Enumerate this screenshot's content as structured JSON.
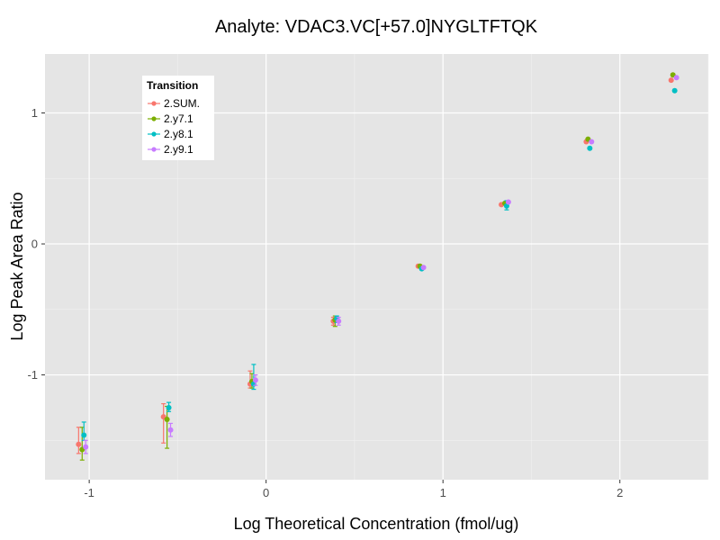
{
  "chart_data": {
    "type": "scatter",
    "title": "Analyte: VDAC3.VC[+57.0]NYGLTFTQK",
    "xlabel": "Log Theoretical Concentration (fmol/ug)",
    "ylabel": "Log Peak Area Ratio",
    "xlim": [
      -1.25,
      2.5
    ],
    "ylim": [
      -1.8,
      1.45
    ],
    "x_ticks": [
      -1,
      0,
      1,
      2
    ],
    "y_ticks": [
      -1,
      0,
      1
    ],
    "x_tick_labels": [
      "-1",
      "0",
      "1",
      "2"
    ],
    "y_tick_labels": [
      "-1",
      "0",
      "1"
    ],
    "grid": true,
    "legend": {
      "title": "Transition",
      "placement": "top-left"
    },
    "series": [
      {
        "name": "2.SUM.",
        "color": "#F8766D",
        "points": [
          {
            "x": -1.06,
            "y": -1.53,
            "ymin": -1.6,
            "ymax": -1.4
          },
          {
            "x": -0.58,
            "y": -1.32,
            "ymin": -1.52,
            "ymax": -1.22
          },
          {
            "x": -0.09,
            "y": -1.07,
            "ymin": -1.1,
            "ymax": -0.97
          },
          {
            "x": 0.38,
            "y": -0.59,
            "ymin": -0.62,
            "ymax": -0.56
          },
          {
            "x": 0.86,
            "y": -0.17
          },
          {
            "x": 1.33,
            "y": 0.3
          },
          {
            "x": 1.81,
            "y": 0.78
          },
          {
            "x": 2.29,
            "y": 1.25
          }
        ]
      },
      {
        "name": "2.y7.1",
        "color": "#7CAE00",
        "points": [
          {
            "x": -1.04,
            "y": -1.57,
            "ymin": -1.65,
            "ymax": -1.4
          },
          {
            "x": -0.56,
            "y": -1.34,
            "ymin": -1.56,
            "ymax": -1.24
          },
          {
            "x": -0.08,
            "y": -1.05,
            "ymin": -1.1,
            "ymax": -0.99
          },
          {
            "x": 0.39,
            "y": -0.58,
            "ymin": -0.63,
            "ymax": -0.55
          },
          {
            "x": 0.87,
            "y": -0.17
          },
          {
            "x": 1.35,
            "y": 0.31
          },
          {
            "x": 1.82,
            "y": 0.8
          },
          {
            "x": 2.3,
            "y": 1.29
          }
        ]
      },
      {
        "name": "2.y8.1",
        "color": "#00BFC4",
        "points": [
          {
            "x": -1.03,
            "y": -1.46,
            "ymin": -1.5,
            "ymax": -1.36
          },
          {
            "x": -0.55,
            "y": -1.25,
            "ymin": -1.28,
            "ymax": -1.21
          },
          {
            "x": -0.07,
            "y": -1.07,
            "ymin": -1.11,
            "ymax": -0.92
          },
          {
            "x": 0.4,
            "y": -0.57,
            "ymin": -0.6,
            "ymax": -0.55
          },
          {
            "x": 0.88,
            "y": -0.19
          },
          {
            "x": 1.36,
            "y": 0.29,
            "ymin": 0.26,
            "ymax": 0.33
          },
          {
            "x": 1.83,
            "y": 0.73
          },
          {
            "x": 2.31,
            "y": 1.17
          }
        ]
      },
      {
        "name": "2.y9.1",
        "color": "#C77CFF",
        "points": [
          {
            "x": -1.02,
            "y": -1.55,
            "ymin": -1.6,
            "ymax": -1.5
          },
          {
            "x": -0.54,
            "y": -1.42,
            "ymin": -1.47,
            "ymax": -1.37
          },
          {
            "x": -0.06,
            "y": -1.04,
            "ymin": -1.08,
            "ymax": -1.0
          },
          {
            "x": 0.41,
            "y": -0.59,
            "ymin": -0.62,
            "ymax": -0.56
          },
          {
            "x": 0.89,
            "y": -0.18
          },
          {
            "x": 1.37,
            "y": 0.32
          },
          {
            "x": 1.84,
            "y": 0.78
          },
          {
            "x": 2.32,
            "y": 1.27
          }
        ]
      }
    ]
  }
}
